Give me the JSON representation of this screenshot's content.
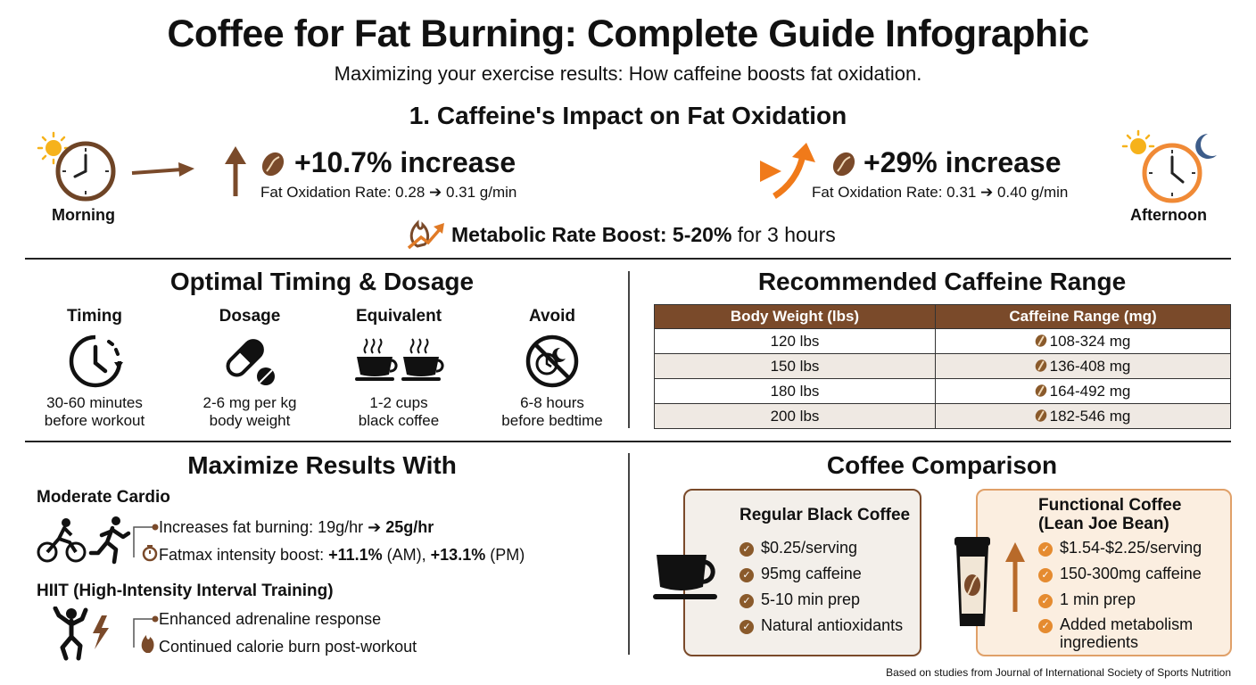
{
  "header": {
    "title": "Coffee for Fat Burning: Complete Guide Infographic",
    "subtitle": "Maximizing your exercise results: How caffeine boosts fat oxidation."
  },
  "impact": {
    "title": "1. Caffeine's Impact on Fat Oxidation",
    "morning_label": "Morning",
    "afternoon_label": "Afternoon",
    "morning_stat": "+10.7% increase",
    "morning_detail": "Fat Oxidation Rate: 0.28 ➔ 0.31 g/min",
    "afternoon_stat": "+29% increase",
    "afternoon_detail": "Fat Oxidation Rate: 0.31 ➔ 0.40 g/min",
    "metabolic_label": "Metabolic Rate Boost: 5-20%",
    "metabolic_suffix": "for 3 hours"
  },
  "timing": {
    "title": "Optimal Timing & Dosage",
    "columns": [
      {
        "head": "Timing",
        "line1": "30-60 minutes",
        "line2": "before workout",
        "icon": "clock-icon"
      },
      {
        "head": "Dosage",
        "line1": "2-6 mg per kg",
        "line2": "body weight",
        "icon": "pill-icon"
      },
      {
        "head": "Equivalent",
        "line1": "1-2 cups",
        "line2": "black coffee",
        "icon": "coffee-cups-icon"
      },
      {
        "head": "Avoid",
        "line1": "6-8 hours",
        "line2": "before bedtime",
        "icon": "no-night-icon"
      }
    ]
  },
  "range": {
    "title": "Recommended Caffeine Range",
    "headers": [
      "Body Weight (lbs)",
      "Caffeine Range (mg)"
    ],
    "rows": [
      [
        "120 lbs",
        "108-324 mg"
      ],
      [
        "150 lbs",
        "136-408 mg"
      ],
      [
        "180 lbs",
        "164-492 mg"
      ],
      [
        "200 lbs",
        "182-546 mg"
      ]
    ]
  },
  "maximize": {
    "title": "Maximize Results With",
    "cardio_head": "Moderate Cardio",
    "cardio_line1_pre": "Increases fat burning: 19g/hr ➔ ",
    "cardio_line1_bold": "25g/hr",
    "cardio_line2_pre": "Fatmax intensity boost: ",
    "cardio_line2_b1": "+11.1%",
    "cardio_line2_mid": " (AM), ",
    "cardio_line2_b2": "+13.1%",
    "cardio_line2_post": " (PM)",
    "hiit_head": "HIIT (High-Intensity Interval Training)",
    "hiit_line1": "Enhanced adrenaline response",
    "hiit_line2": "Continued calorie burn post-workout"
  },
  "comparison": {
    "title": "Coffee Comparison",
    "regular": {
      "title": "Regular Black Coffee",
      "items": [
        "$0.25/serving",
        "95mg caffeine",
        "5-10 min prep",
        "Natural antioxidants"
      ]
    },
    "functional": {
      "title_line1": "Functional Coffee",
      "title_line2": "(Lean Joe Bean)",
      "items": [
        "$1.54-$2.25/serving",
        "150-300mg caffeine",
        "1 min prep",
        "Added metabolism",
        "ingredients"
      ]
    }
  },
  "footer": {
    "note": "Based on studies from Journal of International Society of Sports Nutrition"
  },
  "colors": {
    "brown": "#7a4a2a",
    "orange": "#f28a2e",
    "cream": "#f3efea",
    "peach": "#fbeee0"
  }
}
